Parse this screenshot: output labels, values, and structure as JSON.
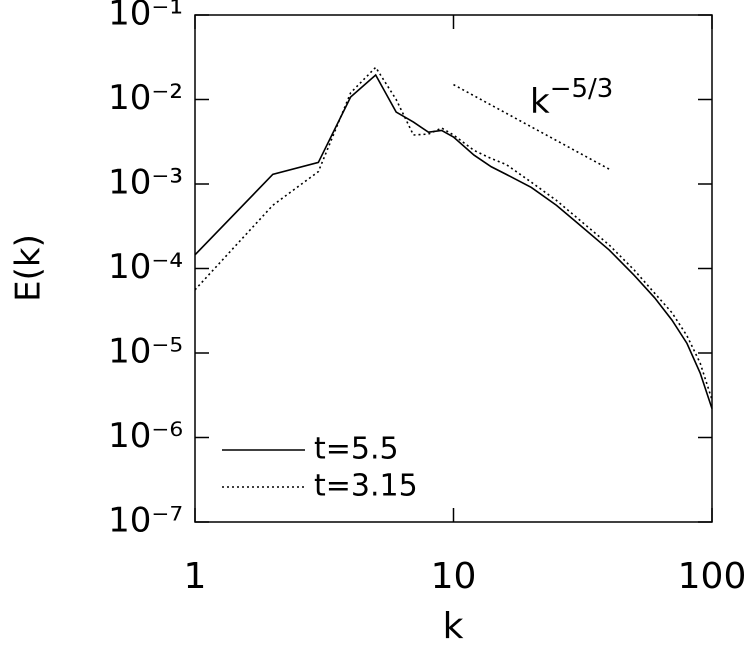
{
  "chart_data": {
    "type": "line",
    "x_label": "k",
    "y_label": "E(k)",
    "log_x": true,
    "log_y": true,
    "xlim": [
      1,
      100
    ],
    "xticks": [
      1,
      10,
      100
    ],
    "ylim": [
      1e-07,
      0.1
    ],
    "yticks": [
      {
        "value": 1e-07,
        "label": "10⁻⁷"
      },
      {
        "value": 1e-06,
        "label": "10⁻⁶"
      },
      {
        "value": 1e-05,
        "label": "10⁻⁵"
      },
      {
        "value": 0.0001,
        "label": "10⁻⁴"
      },
      {
        "value": 0.001,
        "label": "10⁻³"
      },
      {
        "value": 0.01,
        "label": "10⁻²"
      },
      {
        "value": 0.1,
        "label": "10⁻¹"
      }
    ],
    "legend": "lower left",
    "series": [
      {
        "name": "t=5.5",
        "color": "#000000",
        "style": "solid",
        "x": [
          1,
          2,
          3,
          4,
          5,
          6,
          7,
          8,
          9,
          10,
          12,
          14,
          16,
          20,
          25,
          30,
          40,
          50,
          60,
          70,
          80,
          90,
          100
        ],
        "values": [
          0.000145,
          0.0013,
          0.0018,
          0.0107,
          0.0195,
          0.0071,
          0.0054,
          0.0041,
          0.0043,
          0.0036,
          0.0022,
          0.0016,
          0.0013,
          0.00091,
          0.00056,
          0.00035,
          0.000166,
          8.3e-05,
          4.5e-05,
          2.45e-05,
          1.3e-05,
          5.8e-06,
          2.2e-06
        ]
      },
      {
        "name": "t=3.15",
        "color": "#000000",
        "style": "dotted",
        "x": [
          1,
          2,
          3,
          4,
          5,
          6,
          7,
          8,
          9,
          10,
          12,
          14,
          16,
          20,
          25,
          30,
          40,
          50,
          60,
          70,
          80,
          90,
          100
        ],
        "values": [
          5.6e-05,
          0.00056,
          0.0014,
          0.012,
          0.024,
          0.01,
          0.0038,
          0.0039,
          0.0046,
          0.0038,
          0.0025,
          0.002,
          0.0017,
          0.00105,
          0.00064,
          0.0004,
          0.00019,
          9.6e-05,
          5.1e-05,
          3e-05,
          1.6e-05,
          7.6e-06,
          2.8e-06
        ]
      }
    ],
    "reference_line": {
      "x": [
        10,
        40
      ],
      "values": [
        0.015,
        0.0015
      ],
      "style": "dotted"
    },
    "annotation": {
      "text": "k",
      "exponent": "−5/3"
    }
  }
}
